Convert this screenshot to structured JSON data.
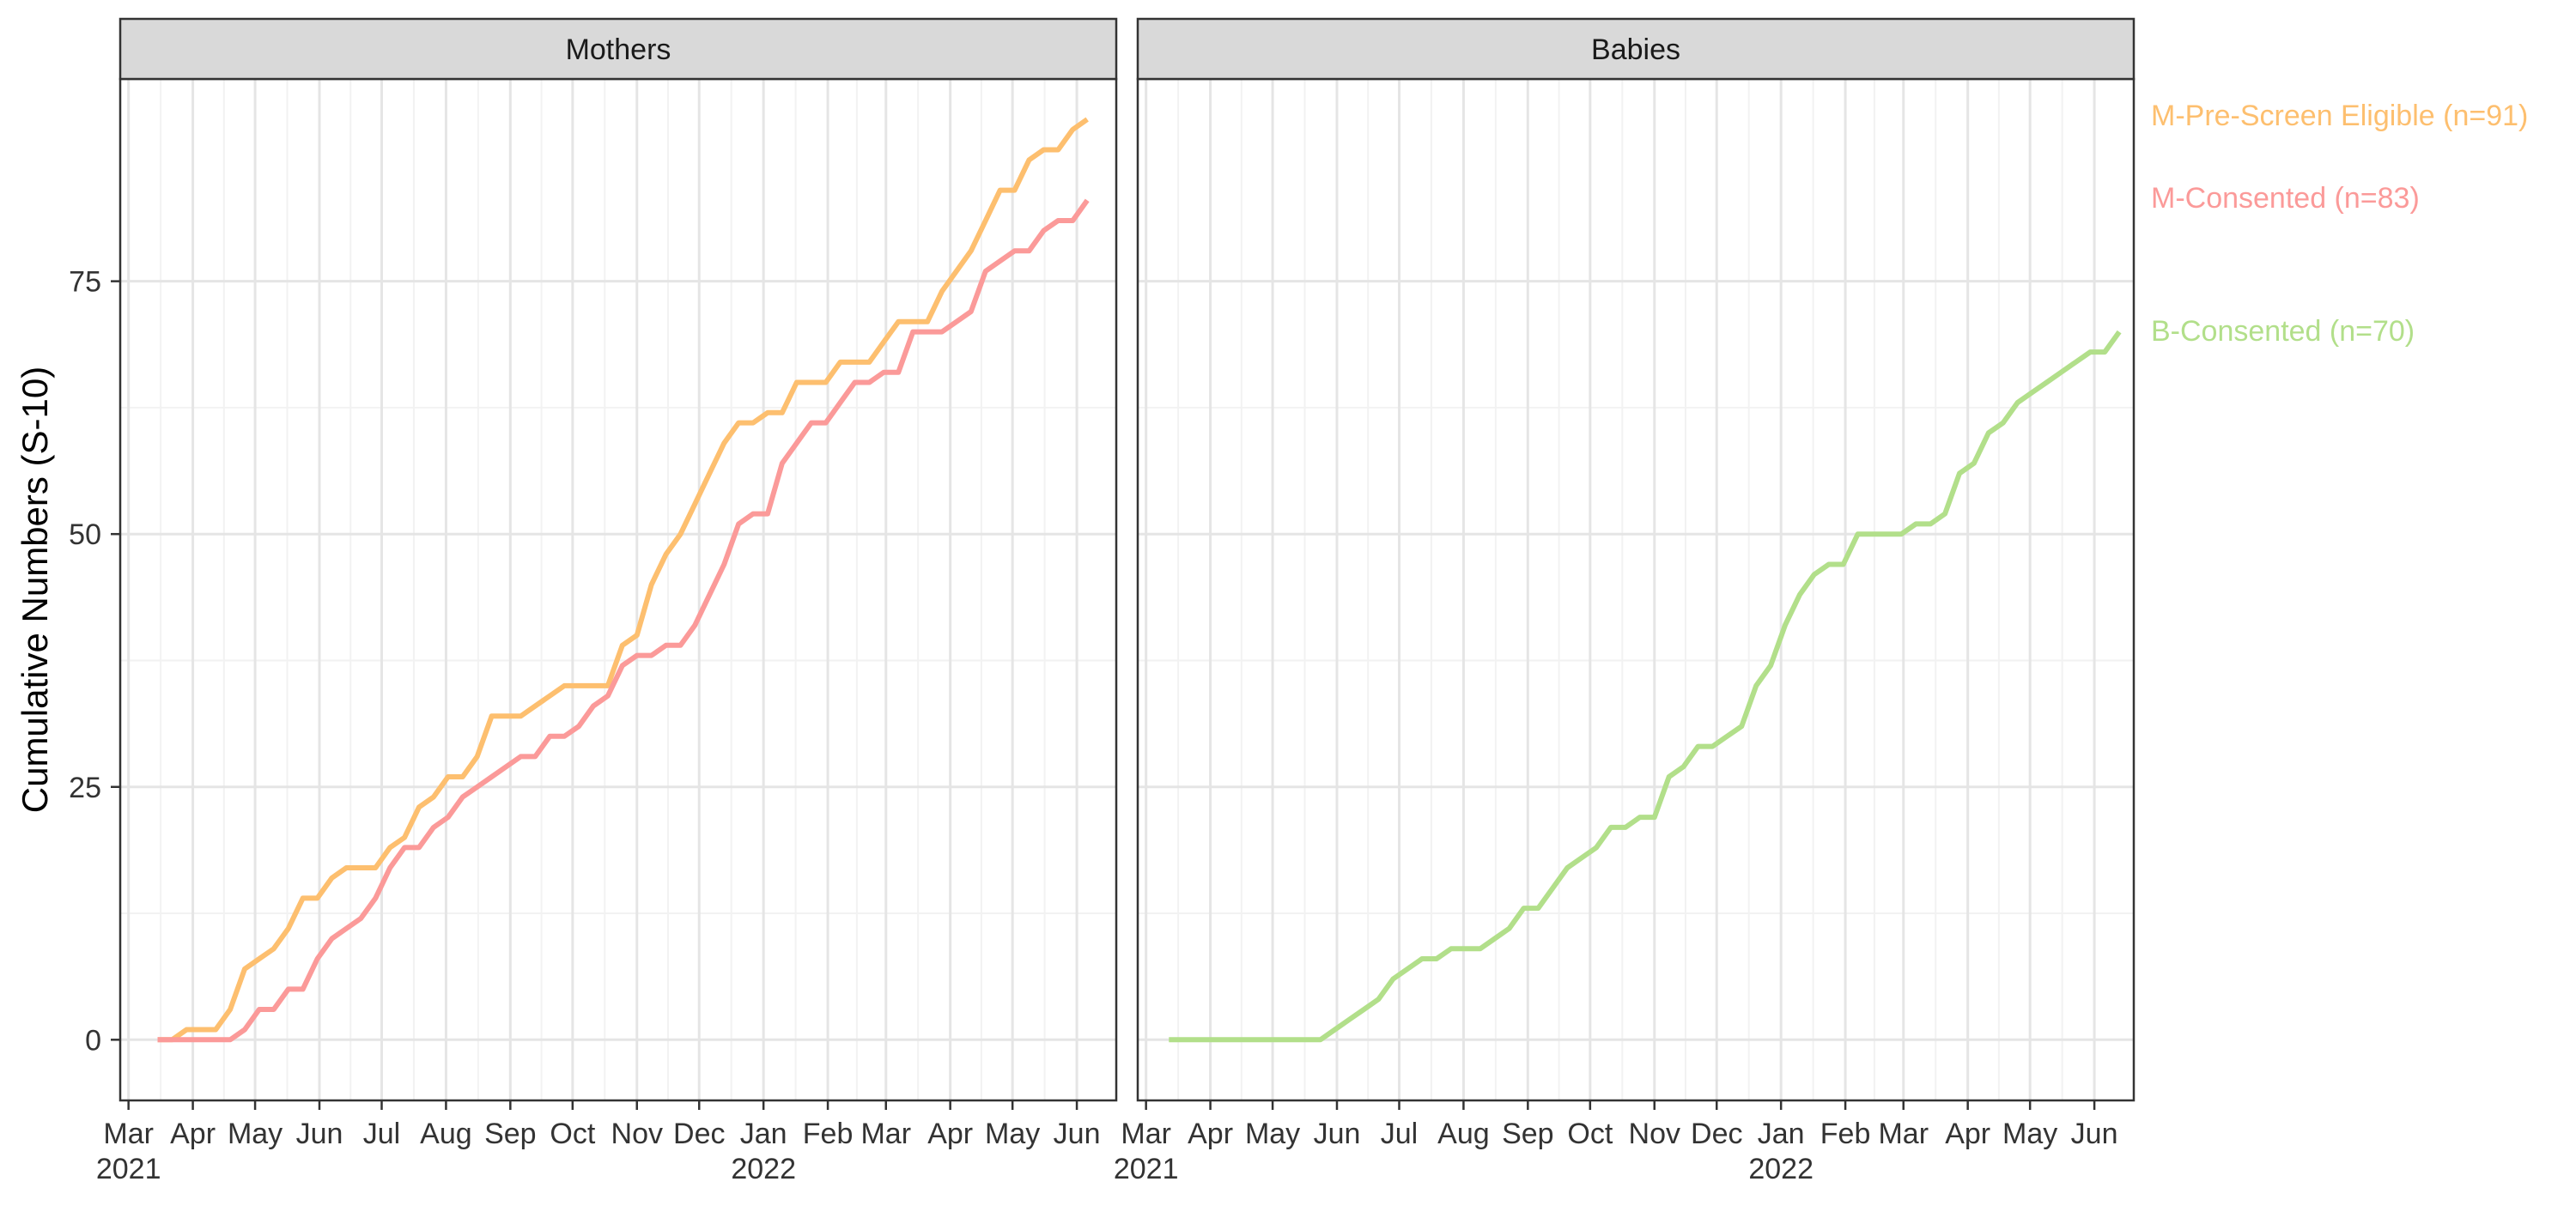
{
  "chart_data": {
    "type": "line",
    "ylabel": "Cumulative Numbers (S-10)",
    "xlabel": "",
    "ylim": [
      -6,
      95
    ],
    "xlim": [
      "2021-02-25",
      "2022-06-20"
    ],
    "yticks": [
      0,
      25,
      50,
      75
    ],
    "grid": true,
    "legend": "right",
    "x_ticks": [
      {
        "date": "2021-03-01",
        "label": "Mar",
        "year": "2021"
      },
      {
        "date": "2021-04-01",
        "label": "Apr",
        "year": ""
      },
      {
        "date": "2021-05-01",
        "label": "May",
        "year": ""
      },
      {
        "date": "2021-06-01",
        "label": "Jun",
        "year": ""
      },
      {
        "date": "2021-07-01",
        "label": "Jul",
        "year": ""
      },
      {
        "date": "2021-08-01",
        "label": "Aug",
        "year": ""
      },
      {
        "date": "2021-09-01",
        "label": "Sep",
        "year": ""
      },
      {
        "date": "2021-10-01",
        "label": "Oct",
        "year": ""
      },
      {
        "date": "2021-11-01",
        "label": "Nov",
        "year": ""
      },
      {
        "date": "2021-12-01",
        "label": "Dec",
        "year": ""
      },
      {
        "date": "2022-01-01",
        "label": "Jan",
        "year": "2022"
      },
      {
        "date": "2022-02-01",
        "label": "Feb",
        "year": ""
      },
      {
        "date": "2022-03-01",
        "label": "Mar",
        "year": ""
      },
      {
        "date": "2022-04-01",
        "label": "Apr",
        "year": ""
      },
      {
        "date": "2022-05-01",
        "label": "May",
        "year": ""
      },
      {
        "date": "2022-06-01",
        "label": "Jun",
        "year": ""
      }
    ],
    "panels": [
      {
        "title": "Mothers",
        "series": [
          {
            "name": "M-Pre-Screen Eligible (n=91)",
            "color": "#FDBF6F",
            "points": [
              [
                "2021-03-15",
                0
              ],
              [
                "2021-03-22",
                0
              ],
              [
                "2021-03-29",
                1
              ],
              [
                "2021-04-05",
                1
              ],
              [
                "2021-04-12",
                1
              ],
              [
                "2021-04-19",
                3
              ],
              [
                "2021-04-26",
                7
              ],
              [
                "2021-05-03",
                8
              ],
              [
                "2021-05-10",
                9
              ],
              [
                "2021-05-17",
                11
              ],
              [
                "2021-05-24",
                14
              ],
              [
                "2021-05-31",
                14
              ],
              [
                "2021-06-07",
                16
              ],
              [
                "2021-06-14",
                17
              ],
              [
                "2021-06-21",
                17
              ],
              [
                "2021-06-28",
                17
              ],
              [
                "2021-07-05",
                19
              ],
              [
                "2021-07-12",
                20
              ],
              [
                "2021-07-19",
                23
              ],
              [
                "2021-07-26",
                24
              ],
              [
                "2021-08-02",
                26
              ],
              [
                "2021-08-09",
                26
              ],
              [
                "2021-08-16",
                28
              ],
              [
                "2021-08-23",
                32
              ],
              [
                "2021-08-30",
                32
              ],
              [
                "2021-09-06",
                32
              ],
              [
                "2021-09-13",
                33
              ],
              [
                "2021-09-20",
                34
              ],
              [
                "2021-09-27",
                35
              ],
              [
                "2021-10-04",
                35
              ],
              [
                "2021-10-11",
                35
              ],
              [
                "2021-10-18",
                35
              ],
              [
                "2021-10-25",
                39
              ],
              [
                "2021-11-01",
                40
              ],
              [
                "2021-11-08",
                45
              ],
              [
                "2021-11-15",
                48
              ],
              [
                "2021-11-22",
                50
              ],
              [
                "2021-11-29",
                53
              ],
              [
                "2021-12-06",
                56
              ],
              [
                "2021-12-13",
                59
              ],
              [
                "2021-12-20",
                61
              ],
              [
                "2021-12-27",
                61
              ],
              [
                "2022-01-03",
                62
              ],
              [
                "2022-01-10",
                62
              ],
              [
                "2022-01-17",
                65
              ],
              [
                "2022-01-24",
                65
              ],
              [
                "2022-01-31",
                65
              ],
              [
                "2022-02-07",
                67
              ],
              [
                "2022-02-14",
                67
              ],
              [
                "2022-02-21",
                67
              ],
              [
                "2022-02-28",
                69
              ],
              [
                "2022-03-07",
                71
              ],
              [
                "2022-03-14",
                71
              ],
              [
                "2022-03-21",
                71
              ],
              [
                "2022-03-28",
                74
              ],
              [
                "2022-04-04",
                76
              ],
              [
                "2022-04-11",
                78
              ],
              [
                "2022-04-18",
                81
              ],
              [
                "2022-04-25",
                84
              ],
              [
                "2022-05-02",
                84
              ],
              [
                "2022-05-09",
                87
              ],
              [
                "2022-05-16",
                88
              ],
              [
                "2022-05-23",
                88
              ],
              [
                "2022-05-30",
                90
              ],
              [
                "2022-06-06",
                91
              ]
            ]
          },
          {
            "name": "M-Consented (n=83)",
            "color": "#FB9A99",
            "points": [
              [
                "2021-03-15",
                0
              ],
              [
                "2021-03-22",
                0
              ],
              [
                "2021-03-29",
                0
              ],
              [
                "2021-04-05",
                0
              ],
              [
                "2021-04-12",
                0
              ],
              [
                "2021-04-19",
                0
              ],
              [
                "2021-04-26",
                1
              ],
              [
                "2021-05-03",
                3
              ],
              [
                "2021-05-10",
                3
              ],
              [
                "2021-05-17",
                5
              ],
              [
                "2021-05-24",
                5
              ],
              [
                "2021-05-31",
                8
              ],
              [
                "2021-06-07",
                10
              ],
              [
                "2021-06-14",
                11
              ],
              [
                "2021-06-21",
                12
              ],
              [
                "2021-06-28",
                14
              ],
              [
                "2021-07-05",
                17
              ],
              [
                "2021-07-12",
                19
              ],
              [
                "2021-07-19",
                19
              ],
              [
                "2021-07-26",
                21
              ],
              [
                "2021-08-02",
                22
              ],
              [
                "2021-08-09",
                24
              ],
              [
                "2021-08-16",
                25
              ],
              [
                "2021-08-23",
                26
              ],
              [
                "2021-08-30",
                27
              ],
              [
                "2021-09-06",
                28
              ],
              [
                "2021-09-13",
                28
              ],
              [
                "2021-09-20",
                30
              ],
              [
                "2021-09-27",
                30
              ],
              [
                "2021-10-04",
                31
              ],
              [
                "2021-10-11",
                33
              ],
              [
                "2021-10-18",
                34
              ],
              [
                "2021-10-25",
                37
              ],
              [
                "2021-11-01",
                38
              ],
              [
                "2021-11-08",
                38
              ],
              [
                "2021-11-15",
                39
              ],
              [
                "2021-11-22",
                39
              ],
              [
                "2021-11-29",
                41
              ],
              [
                "2021-12-06",
                44
              ],
              [
                "2021-12-13",
                47
              ],
              [
                "2021-12-20",
                51
              ],
              [
                "2021-12-27",
                52
              ],
              [
                "2022-01-03",
                52
              ],
              [
                "2022-01-10",
                57
              ],
              [
                "2022-01-17",
                59
              ],
              [
                "2022-01-24",
                61
              ],
              [
                "2022-01-31",
                61
              ],
              [
                "2022-02-07",
                63
              ],
              [
                "2022-02-14",
                65
              ],
              [
                "2022-02-21",
                65
              ],
              [
                "2022-02-28",
                66
              ],
              [
                "2022-03-07",
                66
              ],
              [
                "2022-03-14",
                70
              ],
              [
                "2022-03-21",
                70
              ],
              [
                "2022-03-28",
                70
              ],
              [
                "2022-04-04",
                71
              ],
              [
                "2022-04-11",
                72
              ],
              [
                "2022-04-18",
                76
              ],
              [
                "2022-04-25",
                77
              ],
              [
                "2022-05-02",
                78
              ],
              [
                "2022-05-09",
                78
              ],
              [
                "2022-05-16",
                80
              ],
              [
                "2022-05-23",
                81
              ],
              [
                "2022-05-30",
                81
              ],
              [
                "2022-06-06",
                83
              ]
            ]
          }
        ]
      },
      {
        "title": "Babies",
        "series": [
          {
            "name": "B-Consented (n=70)",
            "color": "#B2DF8A",
            "points": [
              [
                "2021-03-12",
                0
              ],
              [
                "2021-05-24",
                0
              ],
              [
                "2021-05-31",
                1
              ],
              [
                "2021-06-07",
                2
              ],
              [
                "2021-06-14",
                3
              ],
              [
                "2021-06-21",
                4
              ],
              [
                "2021-06-28",
                6
              ],
              [
                "2021-07-05",
                7
              ],
              [
                "2021-07-12",
                8
              ],
              [
                "2021-07-19",
                8
              ],
              [
                "2021-07-26",
                9
              ],
              [
                "2021-08-02",
                9
              ],
              [
                "2021-08-09",
                9
              ],
              [
                "2021-08-16",
                10
              ],
              [
                "2021-08-23",
                11
              ],
              [
                "2021-08-30",
                13
              ],
              [
                "2021-09-06",
                13
              ],
              [
                "2021-09-13",
                15
              ],
              [
                "2021-09-20",
                17
              ],
              [
                "2021-09-27",
                18
              ],
              [
                "2021-10-04",
                19
              ],
              [
                "2021-10-11",
                21
              ],
              [
                "2021-10-18",
                21
              ],
              [
                "2021-10-25",
                22
              ],
              [
                "2021-11-01",
                22
              ],
              [
                "2021-11-08",
                26
              ],
              [
                "2021-11-15",
                27
              ],
              [
                "2021-11-22",
                29
              ],
              [
                "2021-11-29",
                29
              ],
              [
                "2021-12-06",
                30
              ],
              [
                "2021-12-13",
                31
              ],
              [
                "2021-12-20",
                35
              ],
              [
                "2021-12-27",
                37
              ],
              [
                "2022-01-03",
                41
              ],
              [
                "2022-01-10",
                44
              ],
              [
                "2022-01-17",
                46
              ],
              [
                "2022-01-24",
                47
              ],
              [
                "2022-01-31",
                47
              ],
              [
                "2022-02-07",
                50
              ],
              [
                "2022-02-14",
                50
              ],
              [
                "2022-02-21",
                50
              ],
              [
                "2022-02-28",
                50
              ],
              [
                "2022-03-07",
                51
              ],
              [
                "2022-03-14",
                51
              ],
              [
                "2022-03-21",
                52
              ],
              [
                "2022-03-28",
                56
              ],
              [
                "2022-04-04",
                57
              ],
              [
                "2022-04-11",
                60
              ],
              [
                "2022-04-18",
                61
              ],
              [
                "2022-04-25",
                63
              ],
              [
                "2022-05-02",
                64
              ],
              [
                "2022-05-09",
                65
              ],
              [
                "2022-05-16",
                66
              ],
              [
                "2022-05-23",
                67
              ],
              [
                "2022-05-30",
                68
              ],
              [
                "2022-06-06",
                68
              ],
              [
                "2022-06-13",
                70
              ]
            ]
          }
        ]
      }
    ]
  }
}
